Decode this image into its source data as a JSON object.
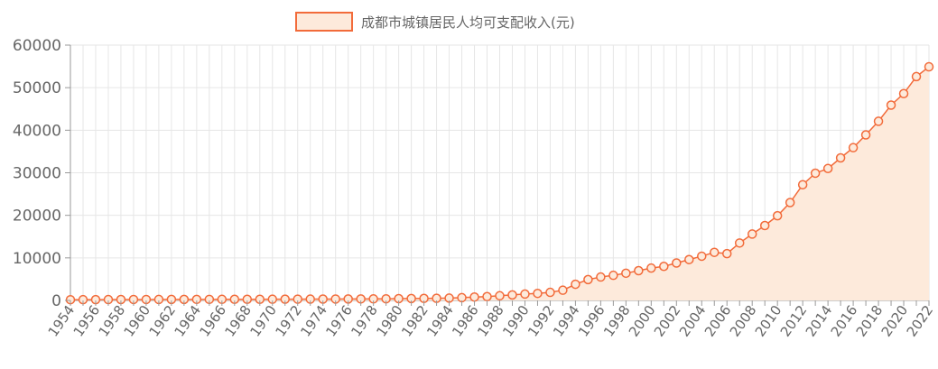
{
  "chart_data": {
    "type": "area",
    "legend": {
      "position": "top-center",
      "label": "成都市城镇居民人均可支配收入(元)"
    },
    "colors": {
      "line": "#f26b3a",
      "fill": "#fdeadb",
      "grid": "#e6e6e6",
      "axis": "#999999",
      "text": "#666666"
    },
    "ylim": [
      0,
      60000
    ],
    "yticks": [
      0,
      10000,
      20000,
      30000,
      40000,
      50000,
      60000
    ],
    "xtick_labels": [
      "1954",
      "1956",
      "1958",
      "1960",
      "1962",
      "1964",
      "1966",
      "1968",
      "1970",
      "1972",
      "1974",
      "1976",
      "1978",
      "1980",
      "1982",
      "1984",
      "1986",
      "1988",
      "1990",
      "1992",
      "1994",
      "1996",
      "1998",
      "2000",
      "2002",
      "2004",
      "2006",
      "2008",
      "2010",
      "2012",
      "2014",
      "2016",
      "2018",
      "2020",
      "2022"
    ],
    "x": [
      1954,
      1955,
      1956,
      1957,
      1958,
      1959,
      1960,
      1961,
      1962,
      1963,
      1964,
      1965,
      1966,
      1967,
      1968,
      1969,
      1970,
      1971,
      1972,
      1973,
      1974,
      1975,
      1976,
      1977,
      1978,
      1979,
      1980,
      1981,
      1982,
      1983,
      1984,
      1985,
      1986,
      1987,
      1988,
      1989,
      1990,
      1991,
      1992,
      1993,
      1994,
      1995,
      1996,
      1997,
      1998,
      1999,
      2000,
      2001,
      2002,
      2003,
      2004,
      2005,
      2006,
      2007,
      2008,
      2009,
      2010,
      2011,
      2012,
      2013,
      2014,
      2015,
      2016,
      2017,
      2018,
      2019,
      2020,
      2021,
      2022
    ],
    "series": [
      {
        "name": "成都市城镇居民人均可支配收入(元)",
        "values": [
          170,
          180,
          190,
          200,
          210,
          220,
          225,
          230,
          235,
          240,
          245,
          250,
          255,
          260,
          265,
          270,
          280,
          290,
          300,
          310,
          320,
          330,
          340,
          350,
          360,
          380,
          420,
          450,
          480,
          500,
          550,
          650,
          800,
          900,
          1100,
          1300,
          1500,
          1650,
          1900,
          2400,
          3800,
          4900,
          5500,
          5900,
          6400,
          7000,
          7600,
          8000,
          8800,
          9600,
          10400,
          11300,
          11000,
          13500,
          15600,
          17600,
          19900,
          23000,
          27200,
          29900,
          31000,
          33500,
          35900,
          38900,
          42100,
          45900,
          48600,
          52600,
          54900
        ]
      }
    ]
  }
}
